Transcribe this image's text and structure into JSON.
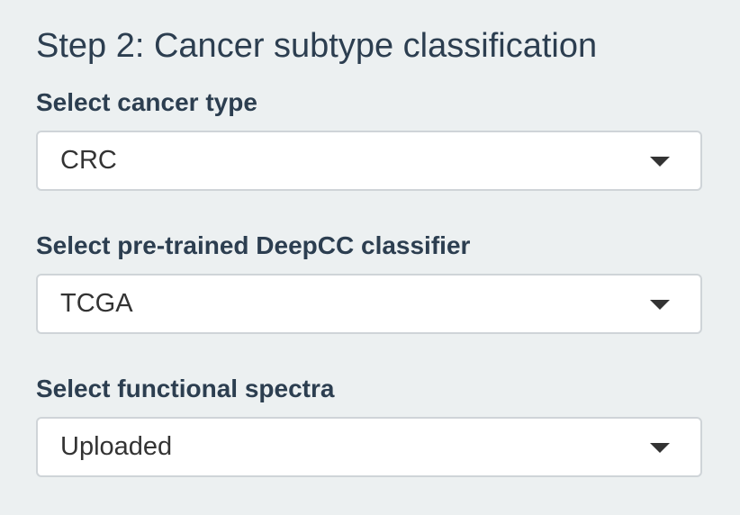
{
  "panel": {
    "title": "Step 2: Cancer subtype classification"
  },
  "fields": [
    {
      "label": "Select cancer type",
      "selected": "CRC"
    },
    {
      "label": "Select pre-trained DeepCC classifier",
      "selected": "TCGA"
    },
    {
      "label": "Select functional spectra",
      "selected": "Uploaded"
    }
  ],
  "colors": {
    "background": "#ecf0f1",
    "text": "#2c3e50",
    "select_border": "#cfd4d8",
    "select_background": "#ffffff"
  },
  "icons": {
    "dropdown": "caret-down-icon"
  }
}
